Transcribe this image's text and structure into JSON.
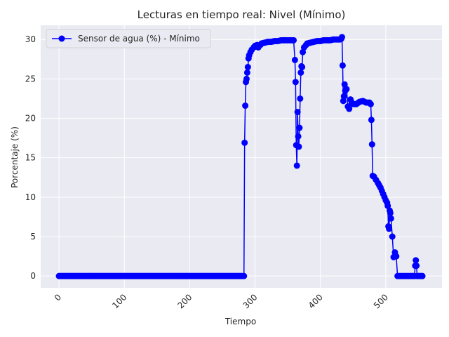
{
  "chart_data": {
    "type": "line",
    "title": "Lecturas en tiempo real: Nivel (Mínimo)",
    "xlabel": "Tiempo",
    "ylabel": "Porcentaje (%)",
    "xlim": [
      -28,
      586
    ],
    "ylim": [
      -1.5,
      31.8
    ],
    "xticks": [
      0,
      100,
      200,
      300,
      400,
      500
    ],
    "yticks": [
      0,
      5,
      10,
      15,
      20,
      25,
      30
    ],
    "grid": true,
    "legend_position": "top-left",
    "background_color": "#eaeaf2",
    "series_color": "#0000ff",
    "series": [
      {
        "name": "Sensor de agua (%) - Mínimo",
        "x": [
          0,
          20,
          40,
          60,
          80,
          100,
          120,
          140,
          160,
          180,
          200,
          220,
          240,
          260,
          280,
          283,
          284,
          285,
          286,
          287,
          288,
          289,
          290,
          291,
          293,
          295,
          298,
          300,
          303,
          305,
          308,
          310,
          315,
          320,
          325,
          330,
          335,
          340,
          345,
          350,
          355,
          359,
          361,
          362,
          363,
          364,
          365,
          366,
          367,
          368,
          369,
          370,
          371,
          372,
          373,
          375,
          378,
          380,
          385,
          390,
          395,
          400,
          405,
          410,
          415,
          420,
          425,
          430,
          432,
          433,
          434,
          435,
          436,
          437,
          438,
          440,
          442,
          444,
          446,
          448,
          450,
          455,
          460,
          465,
          470,
          475,
          477,
          478,
          479,
          480,
          482,
          485,
          488,
          490,
          492,
          494,
          496,
          498,
          500,
          502,
          503,
          504,
          505,
          506,
          507,
          508,
          510,
          512,
          514,
          516,
          518,
          520,
          525,
          530,
          535,
          540,
          542,
          544,
          545,
          546,
          547,
          548,
          550,
          552,
          554,
          556
        ],
        "values": [
          0,
          0,
          0,
          0,
          0,
          0,
          0,
          0,
          0,
          0,
          0,
          0,
          0,
          0,
          0,
          0,
          16.9,
          21.6,
          24.6,
          25.0,
          25.8,
          26.5,
          27.6,
          28.0,
          28.4,
          28.7,
          29.0,
          29.2,
          29.3,
          29.0,
          29.3,
          29.5,
          29.6,
          29.7,
          29.7,
          29.8,
          29.8,
          29.9,
          29.9,
          29.9,
          29.9,
          29.9,
          27.4,
          24.6,
          16.6,
          14.0,
          20.8,
          17.7,
          16.4,
          18.8,
          22.5,
          25.8,
          26.6,
          26.5,
          28.4,
          29.0,
          29.3,
          29.5,
          29.6,
          29.7,
          29.8,
          29.8,
          29.9,
          29.9,
          29.9,
          30.0,
          30.0,
          30.0,
          30.1,
          30.3,
          26.7,
          22.2,
          22.8,
          24.3,
          23.5,
          23.7,
          21.5,
          21.2,
          22.4,
          22.0,
          21.8,
          21.8,
          22.1,
          22.2,
          22.0,
          22.0,
          21.8,
          19.8,
          16.7,
          12.7,
          12.6,
          12.2,
          11.8,
          11.5,
          11.2,
          10.8,
          10.4,
          10.0,
          9.6,
          9.3,
          8.9,
          6.3,
          6.0,
          8.3,
          8.0,
          7.3,
          5.0,
          2.4,
          3.0,
          2.5,
          0,
          0,
          0,
          0,
          0,
          0,
          0,
          0,
          1.3,
          2.0,
          1.3,
          0,
          0,
          0,
          0,
          0
        ]
      }
    ]
  }
}
